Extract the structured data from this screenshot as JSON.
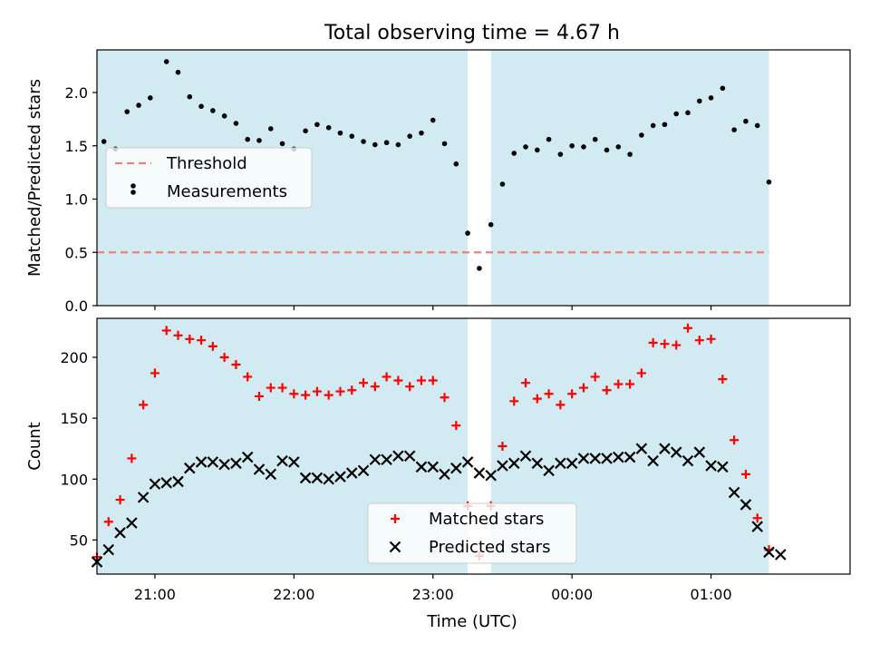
{
  "figure": {
    "title": "Total observing time = 4.67 h",
    "xlabel": "Time (UTC)",
    "x_tick_labels": [
      "21:00",
      "22:00",
      "23:00",
      "00:00",
      "01:00"
    ]
  },
  "colors": {
    "shading": "#add8e6",
    "threshold": "#f08080",
    "matched": "#ff0000",
    "predicted": "#000000",
    "measurements": "#000000"
  },
  "chart_data": [
    {
      "type": "scatter",
      "ylabel": "Matched/Predicted stars",
      "ylim": [
        0,
        2.4
      ],
      "y_ticks": [
        0.0,
        0.5,
        1.0,
        1.5,
        2.0
      ],
      "y_tick_labels": [
        "0.0",
        "0.5",
        "1.0",
        "1.5",
        "2.0"
      ],
      "x_range": [
        "20:35",
        "02:00"
      ],
      "x_ticks": [
        "21:00",
        "22:00",
        "23:00",
        "00:00",
        "01:00"
      ],
      "shaded_intervals": [
        [
          "20:35",
          "23:15"
        ],
        [
          "23:25",
          "01:25"
        ]
      ],
      "legend_position": "center-left",
      "threshold": {
        "name": "Threshold",
        "value": 0.5,
        "style": "dashed",
        "color": "#f08080"
      },
      "series": [
        {
          "name": "Measurements",
          "marker": "dot",
          "points": [
            [
              "20:38",
              1.54
            ],
            [
              "20:43",
              1.47
            ],
            [
              "20:48",
              1.82
            ],
            [
              "20:53",
              1.88
            ],
            [
              "20:58",
              1.95
            ],
            [
              "21:05",
              2.29
            ],
            [
              "21:10",
              2.19
            ],
            [
              "21:15",
              1.96
            ],
            [
              "21:20",
              1.87
            ],
            [
              "21:25",
              1.83
            ],
            [
              "21:30",
              1.78
            ],
            [
              "21:35",
              1.71
            ],
            [
              "21:40",
              1.56
            ],
            [
              "21:45",
              1.55
            ],
            [
              "21:50",
              1.66
            ],
            [
              "21:55",
              1.52
            ],
            [
              "22:00",
              1.47
            ],
            [
              "22:05",
              1.64
            ],
            [
              "22:10",
              1.7
            ],
            [
              "22:15",
              1.67
            ],
            [
              "22:20",
              1.62
            ],
            [
              "22:25",
              1.59
            ],
            [
              "22:30",
              1.54
            ],
            [
              "22:35",
              1.51
            ],
            [
              "22:40",
              1.53
            ],
            [
              "22:45",
              1.51
            ],
            [
              "22:50",
              1.59
            ],
            [
              "22:55",
              1.62
            ],
            [
              "23:00",
              1.74
            ],
            [
              "23:05",
              1.52
            ],
            [
              "23:10",
              1.33
            ],
            [
              "23:15",
              0.68
            ],
            [
              "23:20",
              0.35
            ],
            [
              "23:25",
              0.76
            ],
            [
              "23:30",
              1.14
            ],
            [
              "23:35",
              1.43
            ],
            [
              "23:40",
              1.49
            ],
            [
              "23:45",
              1.46
            ],
            [
              "23:50",
              1.56
            ],
            [
              "23:55",
              1.42
            ],
            [
              "00:00",
              1.5
            ],
            [
              "00:05",
              1.49
            ],
            [
              "00:10",
              1.56
            ],
            [
              "00:15",
              1.46
            ],
            [
              "00:20",
              1.49
            ],
            [
              "00:25",
              1.42
            ],
            [
              "00:30",
              1.6
            ],
            [
              "00:35",
              1.69
            ],
            [
              "00:40",
              1.7
            ],
            [
              "00:45",
              1.8
            ],
            [
              "00:50",
              1.81
            ],
            [
              "00:55",
              1.92
            ],
            [
              "01:00",
              1.95
            ],
            [
              "01:05",
              2.04
            ],
            [
              "01:10",
              1.65
            ],
            [
              "01:15",
              1.73
            ],
            [
              "01:20",
              1.69
            ],
            [
              "01:25",
              1.16
            ]
          ]
        }
      ]
    },
    {
      "type": "scatter",
      "ylabel": "Count",
      "ylim": [
        22,
        232
      ],
      "y_ticks": [
        50,
        100,
        150,
        200
      ],
      "y_tick_labels": [
        "50",
        "100",
        "150",
        "200"
      ],
      "x_range": [
        "20:35",
        "02:00"
      ],
      "x_ticks": [
        "21:00",
        "22:00",
        "23:00",
        "00:00",
        "01:00"
      ],
      "x_tick_labels": [
        "21:00",
        "22:00",
        "23:00",
        "00:00",
        "01:00"
      ],
      "shaded_intervals": [
        [
          "20:35",
          "23:15"
        ],
        [
          "23:25",
          "01:25"
        ]
      ],
      "legend_position": "lower-center",
      "series": [
        {
          "name": "Matched stars",
          "marker": "plus",
          "points": [
            [
              "20:35",
              36
            ],
            [
              "20:40",
              65
            ],
            [
              "20:45",
              83
            ],
            [
              "20:50",
              117
            ],
            [
              "20:55",
              161
            ],
            [
              "21:00",
              187
            ],
            [
              "21:05",
              222
            ],
            [
              "21:10",
              218
            ],
            [
              "21:15",
              215
            ],
            [
              "21:20",
              214
            ],
            [
              "21:25",
              209
            ],
            [
              "21:30",
              200
            ],
            [
              "21:35",
              194
            ],
            [
              "21:40",
              184
            ],
            [
              "21:45",
              168
            ],
            [
              "21:50",
              175
            ],
            [
              "21:55",
              175
            ],
            [
              "22:00",
              170
            ],
            [
              "22:05",
              169
            ],
            [
              "22:10",
              172
            ],
            [
              "22:15",
              169
            ],
            [
              "22:20",
              172
            ],
            [
              "22:25",
              173
            ],
            [
              "22:30",
              179
            ],
            [
              "22:35",
              176
            ],
            [
              "22:40",
              184
            ],
            [
              "22:45",
              181
            ],
            [
              "22:50",
              176
            ],
            [
              "22:55",
              181
            ],
            [
              "23:00",
              181
            ],
            [
              "23:05",
              167
            ],
            [
              "23:10",
              144
            ],
            [
              "23:15",
              78
            ],
            [
              "23:20",
              37
            ],
            [
              "23:25",
              78
            ],
            [
              "23:30",
              127
            ],
            [
              "23:35",
              164
            ],
            [
              "23:40",
              179
            ],
            [
              "23:45",
              166
            ],
            [
              "23:50",
              170
            ],
            [
              "23:55",
              161
            ],
            [
              "00:00",
              170
            ],
            [
              "00:05",
              175
            ],
            [
              "00:10",
              184
            ],
            [
              "00:15",
              173
            ],
            [
              "00:20",
              178
            ],
            [
              "00:25",
              178
            ],
            [
              "00:30",
              187
            ],
            [
              "00:35",
              212
            ],
            [
              "00:40",
              211
            ],
            [
              "00:45",
              210
            ],
            [
              "00:50",
              224
            ],
            [
              "00:55",
              214
            ],
            [
              "01:00",
              215
            ],
            [
              "01:05",
              182
            ],
            [
              "01:10",
              132
            ],
            [
              "01:15",
              104
            ],
            [
              "01:20",
              68
            ],
            [
              "01:25",
              42
            ]
          ]
        },
        {
          "name": "Predicted stars",
          "marker": "x",
          "points": [
            [
              "20:35",
              32
            ],
            [
              "20:40",
              42
            ],
            [
              "20:45",
              56
            ],
            [
              "20:50",
              64
            ],
            [
              "20:55",
              85
            ],
            [
              "21:00",
              96
            ],
            [
              "21:05",
              97
            ],
            [
              "21:10",
              98
            ],
            [
              "21:15",
              109
            ],
            [
              "21:20",
              114
            ],
            [
              "21:25",
              114
            ],
            [
              "21:30",
              112
            ],
            [
              "21:35",
              113
            ],
            [
              "21:40",
              118
            ],
            [
              "21:45",
              108
            ],
            [
              "21:50",
              104
            ],
            [
              "21:55",
              115
            ],
            [
              "22:00",
              114
            ],
            [
              "22:05",
              101
            ],
            [
              "22:10",
              101
            ],
            [
              "22:15",
              100
            ],
            [
              "22:20",
              102
            ],
            [
              "22:25",
              105
            ],
            [
              "22:30",
              107
            ],
            [
              "22:35",
              116
            ],
            [
              "22:40",
              116
            ],
            [
              "22:45",
              119
            ],
            [
              "22:50",
              119
            ],
            [
              "22:55",
              110
            ],
            [
              "23:00",
              110
            ],
            [
              "23:05",
              104
            ],
            [
              "23:10",
              109
            ],
            [
              "23:15",
              114
            ],
            [
              "23:20",
              105
            ],
            [
              "23:25",
              103
            ],
            [
              "23:30",
              111
            ],
            [
              "23:35",
              113
            ],
            [
              "23:40",
              119
            ],
            [
              "23:45",
              113
            ],
            [
              "23:50",
              107
            ],
            [
              "23:55",
              113
            ],
            [
              "00:00",
              113
            ],
            [
              "00:05",
              117
            ],
            [
              "00:10",
              117
            ],
            [
              "00:15",
              117
            ],
            [
              "00:20",
              118
            ],
            [
              "00:25",
              118
            ],
            [
              "00:30",
              125
            ],
            [
              "00:35",
              115
            ],
            [
              "00:40",
              125
            ],
            [
              "00:45",
              122
            ],
            [
              "00:50",
              115
            ],
            [
              "00:55",
              122
            ],
            [
              "01:00",
              111
            ],
            [
              "01:05",
              110
            ],
            [
              "01:10",
              89
            ],
            [
              "01:15",
              79
            ],
            [
              "01:20",
              61
            ],
            [
              "01:25",
              40
            ],
            [
              "01:30",
              38
            ]
          ]
        }
      ]
    }
  ]
}
